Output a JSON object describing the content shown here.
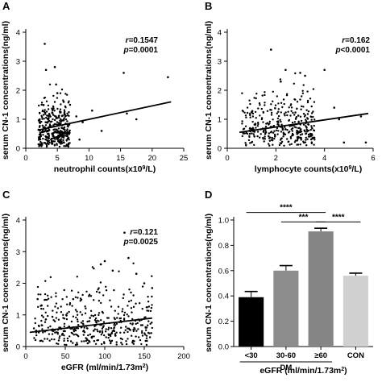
{
  "chart_data": [
    {
      "panel": "A",
      "type": "scatter",
      "xlabel": "neutrophil counts(x10^9/L)",
      "ylabel": "serum CN-1 concentrations(ng/ml)",
      "xlim": [
        0,
        25
      ],
      "ylim": [
        0,
        4
      ],
      "xticks": [
        0,
        5,
        10,
        15,
        20,
        25
      ],
      "yticks": [
        0,
        1,
        2,
        3,
        4
      ],
      "stats": {
        "r": "r=0.1547",
        "p": "p=0.0001"
      },
      "fit_line": {
        "x": [
          2,
          23
        ],
        "y": [
          0.63,
          1.6
        ]
      },
      "cluster": {
        "xmin": 2,
        "xmax": 7,
        "n": 360,
        "ymedian": 0.6,
        "spread": 0.55
      },
      "points": [
        [
          3.0,
          3.6
        ],
        [
          3.2,
          2.7
        ],
        [
          4.6,
          2.8
        ],
        [
          4.8,
          2.2
        ],
        [
          5.0,
          1.9
        ],
        [
          6.0,
          1.6
        ],
        [
          7.0,
          1.5
        ],
        [
          8.0,
          1.1
        ],
        [
          9.0,
          0.9
        ],
        [
          10.5,
          1.3
        ],
        [
          12.0,
          0.6
        ],
        [
          15.5,
          2.6
        ],
        [
          16.0,
          1.2
        ],
        [
          17.5,
          1.0
        ],
        [
          22.5,
          2.45
        ],
        [
          8.5,
          0.3
        ],
        [
          6.5,
          0.5
        ]
      ]
    },
    {
      "panel": "B",
      "type": "scatter",
      "xlabel": "lymphocyte counts(x10^9/L)",
      "ylabel": "serum CN-1 concentrations(ng/ml)",
      "xlim": [
        0,
        6
      ],
      "ylim": [
        0,
        4
      ],
      "xticks": [
        0,
        2,
        4,
        6
      ],
      "yticks": [
        0,
        1,
        2,
        3,
        4
      ],
      "stats": {
        "r": "r=0.162",
        "p": "p<0.0001"
      },
      "fit_line": {
        "x": [
          0.5,
          5.8
        ],
        "y": [
          0.55,
          1.2
        ]
      },
      "cluster": {
        "xmin": 0.6,
        "xmax": 3.6,
        "n": 380,
        "ymedian": 0.7,
        "spread": 0.6
      },
      "points": [
        [
          2.4,
          2.7
        ],
        [
          3.0,
          2.6
        ],
        [
          3.2,
          2.5
        ],
        [
          4.0,
          2.7
        ],
        [
          4.4,
          1.4
        ],
        [
          4.6,
          1.0
        ],
        [
          5.5,
          1.1
        ],
        [
          4.8,
          0.2
        ],
        [
          1.8,
          3.4
        ],
        [
          2.2,
          2.3
        ],
        [
          5.7,
          0.2
        ]
      ]
    },
    {
      "panel": "C",
      "type": "scatter",
      "xlabel": "eGFR (ml/min/1.73m2)",
      "ylabel": "serum CN-1 concentrations(ng/ml)",
      "xlim": [
        0,
        200
      ],
      "ylim": [
        0,
        4
      ],
      "xticks": [
        0,
        50,
        100,
        150,
        200
      ],
      "yticks": [
        0,
        1,
        2,
        3,
        4
      ],
      "stats": {
        "r": "r=0.121",
        "p": "p=0.0025"
      },
      "fit_line": {
        "x": [
          5,
          160
        ],
        "y": [
          0.45,
          0.9
        ]
      },
      "cluster": {
        "xmin": 10,
        "xmax": 160,
        "n": 420,
        "ymedian": 0.65,
        "spread": 0.6
      },
      "points": [
        [
          125,
          3.6
        ],
        [
          95,
          2.6
        ],
        [
          110,
          2.4
        ],
        [
          130,
          2.8
        ],
        [
          140,
          2.3
        ],
        [
          150,
          2.0
        ],
        [
          160,
          1.85
        ],
        [
          100,
          2.7
        ],
        [
          15,
          1.5
        ],
        [
          20,
          1.3
        ],
        [
          60,
          1.5
        ],
        [
          80,
          1.6
        ]
      ]
    },
    {
      "panel": "D",
      "type": "bar",
      "ylabel": "serum CN-1 concentrations(ng/ml)",
      "xlabel": "eGFR (ml/min/1.73m2)",
      "ylim": [
        0,
        1.0
      ],
      "yticks": [
        0.0,
        0.2,
        0.4,
        0.6,
        0.8,
        1.0
      ],
      "ytick_labels": [
        "0.0",
        "0.2",
        "0.4",
        "0.6",
        "0.8",
        "1.0"
      ],
      "categories": [
        "<30",
        "30-60",
        "≥60",
        "CON"
      ],
      "values": [
        0.39,
        0.6,
        0.91,
        0.56
      ],
      "errors": [
        0.045,
        0.04,
        0.025,
        0.02
      ],
      "colors": [
        "#000000",
        "#8c8c8c",
        "#858585",
        "#d0d0d0"
      ],
      "group_label": "DM",
      "significance": [
        {
          "from": 0,
          "to": 2,
          "label": "****",
          "level": 1.06
        },
        {
          "from": 1,
          "to": 2,
          "label": "***",
          "level": 0.985
        },
        {
          "from": 2,
          "to": 3,
          "label": "****",
          "level": 0.985
        }
      ]
    }
  ]
}
